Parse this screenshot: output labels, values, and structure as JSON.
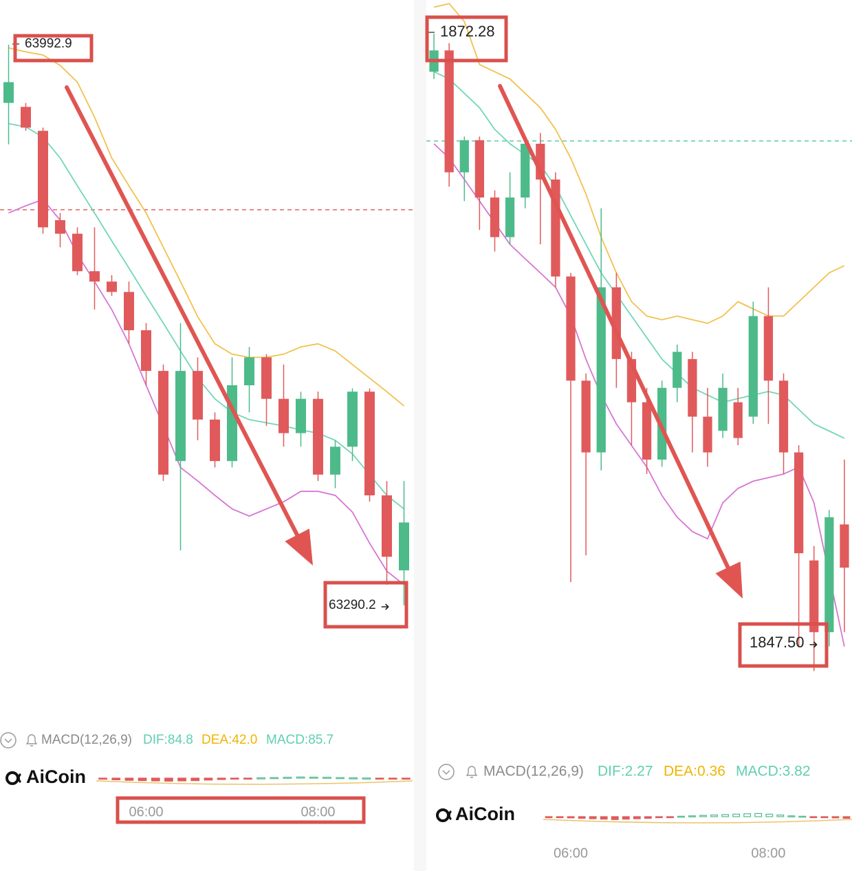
{
  "chart_data": [
    {
      "type": "candlestick",
      "categories": [
        null,
        null,
        null,
        null,
        null,
        null,
        null,
        null,
        "06:00",
        null,
        null,
        null,
        null,
        null,
        null,
        null,
        null,
        null,
        "08:00",
        null,
        null,
        null,
        null,
        null
      ],
      "candles": [
        [
          63920,
          63992.9,
          63868,
          63946
        ],
        [
          63915,
          63920,
          63885,
          63889
        ],
        [
          63885,
          63889,
          63756,
          63764
        ],
        [
          63773,
          63782,
          63739,
          63756
        ],
        [
          63756,
          63764,
          63704,
          63709
        ],
        [
          63709,
          63764,
          63661,
          63696
        ],
        [
          63696,
          63704,
          63678,
          63683
        ],
        [
          63683,
          63696,
          63618,
          63635
        ],
        [
          63635,
          63644,
          63566,
          63584
        ],
        [
          63584,
          63592,
          63446,
          63454
        ],
        [
          63471,
          63644,
          63359,
          63584
        ],
        [
          63584,
          63601,
          63497,
          63523
        ],
        [
          63523,
          63532,
          63463,
          63471
        ],
        [
          63471,
          63601,
          63463,
          63566
        ],
        [
          63566,
          63614,
          63532,
          63601
        ],
        [
          63601,
          63605,
          63515,
          63549
        ],
        [
          63549,
          63592,
          63489,
          63506
        ],
        [
          63506,
          63558,
          63489,
          63549
        ],
        [
          63549,
          63558,
          63446,
          63454
        ],
        [
          63454,
          63497,
          63437,
          63489
        ],
        [
          63489,
          63562,
          63471,
          63558
        ],
        [
          63558,
          63562,
          63420,
          63428
        ],
        [
          63428,
          63446,
          63316,
          63351
        ],
        [
          63334,
          63446,
          63290.2,
          63394
        ]
      ],
      "bands": {
        "upper": [
          63989,
          63984,
          63980,
          63967,
          63946,
          63902,
          63851,
          63816,
          63782,
          63739,
          63696,
          63652,
          63618,
          63605,
          63601,
          63601,
          63605,
          63614,
          63618,
          63609,
          63592,
          63575,
          63558,
          63540
        ],
        "middle": [
          63894,
          63890,
          63877,
          63851,
          63816,
          63782,
          63747,
          63713,
          63678,
          63644,
          63609,
          63575,
          63549,
          63532,
          63523,
          63519,
          63515,
          63510,
          63506,
          63497,
          63480,
          63454,
          63428,
          63411
        ],
        "lower": [
          63782,
          63791,
          63799,
          63773,
          63730,
          63696,
          63661,
          63618,
          63566,
          63515,
          63463,
          63446,
          63428,
          63411,
          63402,
          63411,
          63420,
          63433,
          63433,
          63428,
          63407,
          63368,
          63333,
          63316
        ]
      },
      "band_colors": {
        "upper": "#f2c14e",
        "middle": "#72d6b8",
        "lower": "#d576d3"
      },
      "up_color": "#4dba8a",
      "down_color": "#e05a5c",
      "price_line": 63786,
      "price_line_color": "#e06466",
      "ylim": [
        63152,
        64049
      ],
      "indicator": {
        "name": "MACD(12,26,9)",
        "dif": "DIF:84.8",
        "dea": "DEA:42.0",
        "macd": "MACD:85.7"
      },
      "macd_hist": [
        -40,
        -60,
        -80,
        -90,
        -100,
        -110,
        -100,
        -90,
        -70,
        -50,
        -30,
        -10,
        10,
        20,
        30,
        40,
        35,
        30,
        20,
        10,
        5,
        -5,
        -10,
        -15
      ],
      "macd_ylim": [
        -300,
        300
      ],
      "logo": "AiCoin"
    },
    {
      "type": "candlestick",
      "categories": [
        null,
        null,
        null,
        null,
        null,
        null,
        null,
        null,
        null,
        "06:00",
        null,
        null,
        null,
        null,
        null,
        null,
        null,
        null,
        null,
        null,
        null,
        null,
        "08:00",
        null,
        null,
        null,
        null,
        null
      ],
      "candles": [
        [
          1870.8,
          1872.28,
          1870.52,
          1871.63
        ],
        [
          1871.63,
          1871.91,
          1866.33,
          1866.89
        ],
        [
          1866.89,
          1868.28,
          1865.77,
          1868.14
        ],
        [
          1868.14,
          1868.28,
          1864.65,
          1865.91
        ],
        [
          1865.91,
          1866.19,
          1863.81,
          1864.37
        ],
        [
          1864.37,
          1866.89,
          1864.09,
          1865.91
        ],
        [
          1865.91,
          1868.28,
          1865.49,
          1868.0
        ],
        [
          1868.0,
          1868.42,
          1864.09,
          1866.61
        ],
        [
          1866.61,
          1866.89,
          1862.42,
          1862.84
        ],
        [
          1862.84,
          1862.98,
          1850.96,
          1858.79
        ],
        [
          1858.79,
          1859.07,
          1852.0,
          1856.0
        ],
        [
          1856.0,
          1865.49,
          1855.3,
          1862.42
        ],
        [
          1862.42,
          1862.98,
          1858.51,
          1859.63
        ],
        [
          1859.63,
          1859.91,
          1856.28,
          1857.95
        ],
        [
          1857.95,
          1858.51,
          1855.16,
          1855.72
        ],
        [
          1855.72,
          1858.79,
          1855.44,
          1858.51
        ],
        [
          1858.51,
          1860.19,
          1857.95,
          1859.91
        ],
        [
          1859.63,
          1859.91,
          1856.0,
          1857.39
        ],
        [
          1857.39,
          1858.51,
          1855.44,
          1856.0
        ],
        [
          1856.84,
          1859.07,
          1856.56,
          1858.51
        ],
        [
          1857.95,
          1858.51,
          1856.28,
          1856.56
        ],
        [
          1857.39,
          1861.86,
          1857.11,
          1861.3
        ],
        [
          1861.3,
          1862.42,
          1857.11,
          1858.79
        ],
        [
          1858.79,
          1859.07,
          1855.16,
          1856.0
        ],
        [
          1856.0,
          1856.28,
          1848.46,
          1852.08
        ],
        [
          1851.8,
          1852.36,
          1847.5,
          1849.01
        ],
        [
          1849.01,
          1853.76,
          1848.46,
          1853.48
        ],
        [
          1853.2,
          1855.72,
          1849.01,
          1851.52
        ]
      ],
      "bands": {
        "upper": [
          1873.31,
          1873.45,
          1872.75,
          1871.08,
          1870.8,
          1870.52,
          1869.96,
          1869.4,
          1868.56,
          1867.44,
          1866.05,
          1864.37,
          1862.98,
          1861.86,
          1861.3,
          1861.16,
          1861.3,
          1861.16,
          1861.02,
          1861.3,
          1861.86,
          1861.58,
          1861.3,
          1861.3,
          1861.86,
          1862.42,
          1862.98,
          1863.26
        ],
        "middle": [
          1870.8,
          1870.52,
          1869.96,
          1869.4,
          1868.56,
          1868.0,
          1867.58,
          1867.17,
          1866.33,
          1865.21,
          1864.09,
          1862.98,
          1862.14,
          1861.3,
          1860.46,
          1859.62,
          1859.07,
          1858.51,
          1858.23,
          1857.95,
          1858.09,
          1858.23,
          1858.37,
          1858.23,
          1857.67,
          1857.11,
          1856.83,
          1856.55
        ],
        "lower": [
          1868.0,
          1867.44,
          1866.61,
          1865.77,
          1864.93,
          1864.09,
          1863.53,
          1862.98,
          1862.42,
          1861.3,
          1859.62,
          1858.23,
          1857.11,
          1856.27,
          1855.43,
          1854.32,
          1853.48,
          1852.92,
          1852.64,
          1854.04,
          1854.6,
          1854.88,
          1855.02,
          1855.16,
          1855.43,
          1854.04,
          1851.24,
          1848.45
        ]
      },
      "band_colors": {
        "upper": "#f2c14e",
        "middle": "#72d6b8",
        "lower": "#d576d3"
      },
      "up_color": "#4dba8a",
      "down_color": "#e05a5c",
      "price_line": 1868.11,
      "price_line_color": "#5cc9a7",
      "ylim": [
        1844.7,
        1873.59
      ],
      "low_label": "1847.50",
      "indicator": {
        "name": "MACD(12,26,9)",
        "dif": "DIF:2.27",
        "dea": "DEA:0.36",
        "macd": "MACD:3.82"
      },
      "macd_hist": [
        -0.5,
        -1,
        -1.5,
        -2,
        -2.5,
        -3,
        -3.5,
        -3,
        -2.5,
        -2,
        -1,
        -0.5,
        0.5,
        1,
        1.5,
        2,
        2.5,
        3,
        3.5,
        3.82,
        3,
        2,
        1,
        0.5,
        -0.5,
        -1,
        -1.5,
        -2
      ],
      "macd_ylim": [
        -10,
        10
      ],
      "logo": "AiCoin"
    }
  ]
}
